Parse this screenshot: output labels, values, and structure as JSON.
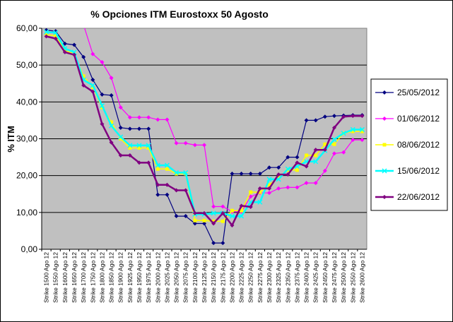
{
  "chart_data": {
    "type": "line",
    "title": "% Opciones ITM Eurostoxx 50 Agosto",
    "ylabel": "% ITM",
    "xlabel": "",
    "ylim": [
      0,
      60
    ],
    "yticks": [
      "0,00",
      "10,00",
      "20,00",
      "30,00",
      "40,00",
      "50,00",
      "60,00"
    ],
    "grid": true,
    "legend": "right",
    "plot_background": "#c0c0c0",
    "categories": [
      "Strike 1500 Ago 12",
      "Strike 1550 Ago 12",
      "Strike 1600 Ago 12",
      "Strike 1650 Ago 12",
      "Strike 1700 Ago 12",
      "Strike 1750 Ago 12",
      "Strike 1800 Ago 12",
      "Strike 1850 Ago 12",
      "Strike 1900 Ago 12",
      "Strike 1925 Ago 12",
      "Strike 1950 Ago 12",
      "Strike 1975 Ago 12",
      "Strike 2000 Ago 12",
      "Strike 2025 Ago 12",
      "Strike 2050 Ago 12",
      "Strike 2075 Ago 12",
      "Strike 2100 Ago 12",
      "Strike 2125 Ago 12",
      "Strike 2150 Ago 12",
      "Strike 2175 Ago 12",
      "Strike 2200 Ago 12",
      "Strike 2225 Ago 12",
      "Strike 2250 Ago 12",
      "Strike 2275 Ago 12",
      "Strike 2300 Ago 12",
      "Strike 2325 Ago 12",
      "Strike 2350 Ago 12",
      "Strike 2375 Ago 12",
      "Strike 2400 Ago 12",
      "Strike 2425 Ago 12",
      "Strike 2450 Ago 12",
      "Strike 2475 Ago 12",
      "Strike 2500 Ago 12",
      "Strike 2550 Ago 12",
      "Strike 2600 Ago 12"
    ],
    "series": [
      {
        "name": "25/05/2012",
        "color": "#000080",
        "marker": "diamond",
        "values": [
          59.5,
          59.2,
          55.8,
          55.5,
          52.2,
          46.0,
          42.0,
          41.8,
          33.0,
          32.7,
          32.7,
          32.7,
          14.8,
          14.8,
          9.0,
          9.0,
          7.0,
          7.0,
          1.7,
          1.7,
          20.5,
          20.5,
          20.5,
          20.5,
          22.2,
          22.2,
          25.0,
          25.0,
          35.0,
          35.0,
          36.0,
          36.2,
          36.3,
          36.4,
          36.4
        ]
      },
      {
        "name": "01/06/2012",
        "color": "#ff00ff",
        "marker": "diamond",
        "values": [
          null,
          null,
          null,
          null,
          61.0,
          53.0,
          50.8,
          46.5,
          38.5,
          35.8,
          35.8,
          35.8,
          35.2,
          35.2,
          28.8,
          28.8,
          28.3,
          28.3,
          11.6,
          11.6,
          10.2,
          10.2,
          14.3,
          15.3,
          15.3,
          16.5,
          16.8,
          16.8,
          18.0,
          18.0,
          21.3,
          26.0,
          26.3,
          29.7,
          29.7
        ]
      },
      {
        "name": "08/06/2012",
        "color": "#ffff00",
        "marker": "square",
        "values": [
          58.2,
          58.0,
          54.0,
          53.0,
          47.0,
          44.0,
          38.5,
          34.5,
          30.0,
          27.5,
          27.5,
          27.5,
          21.8,
          21.8,
          20.5,
          20.5,
          7.8,
          7.8,
          7.6,
          7.6,
          10.5,
          10.5,
          15.5,
          15.5,
          17.5,
          19.5,
          21.5,
          21.5,
          25.5,
          25.5,
          28.5,
          28.5,
          31.5,
          32.0,
          32.0
        ]
      },
      {
        "name": "15/06/2012",
        "color": "#00ffff",
        "marker": "x",
        "values": [
          59.0,
          58.8,
          54.5,
          53.5,
          46.0,
          44.5,
          39.0,
          33.5,
          30.5,
          28.2,
          28.2,
          28.2,
          22.8,
          22.8,
          20.8,
          20.8,
          9.5,
          9.5,
          9.8,
          9.8,
          9.0,
          9.0,
          12.8,
          12.8,
          19.0,
          19.0,
          21.8,
          22.5,
          23.8,
          23.8,
          26.8,
          29.8,
          31.5,
          32.5,
          32.5
        ]
      },
      {
        "name": "22/06/2012",
        "color": "#800080",
        "marker": "diamond",
        "values": [
          57.8,
          57.2,
          53.5,
          52.8,
          44.5,
          42.8,
          34.0,
          29.0,
          25.5,
          25.5,
          23.5,
          23.5,
          17.5,
          17.5,
          16.0,
          16.0,
          9.8,
          9.8,
          7.0,
          9.8,
          6.5,
          11.8,
          11.5,
          16.5,
          16.5,
          20.3,
          20.3,
          23.5,
          22.5,
          27.0,
          27.0,
          33.0,
          36.0,
          36.2,
          36.2
        ]
      }
    ]
  }
}
